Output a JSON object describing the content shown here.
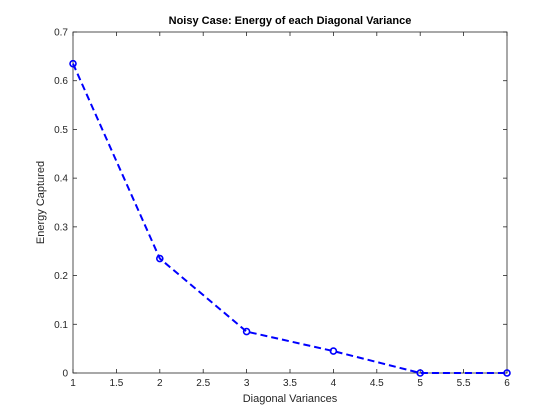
{
  "chart_data": {
    "type": "line",
    "title": "Noisy Case: Energy of each Diagonal Variance",
    "xlabel": "Diagonal Variances",
    "ylabel": "Energy Captured",
    "xlim": [
      1,
      6
    ],
    "ylim": [
      0,
      0.7
    ],
    "xticks": [
      "1",
      "1.5",
      "2",
      "2.5",
      "3",
      "3.5",
      "4",
      "4.5",
      "5",
      "5.5",
      "6"
    ],
    "yticks": [
      "0",
      "0.1",
      "0.2",
      "0.3",
      "0.4",
      "0.5",
      "0.6",
      "0.7"
    ],
    "grid": false,
    "series": [
      {
        "x": [
          1,
          2,
          3,
          4,
          5,
          6
        ],
        "values": [
          0.635,
          0.235,
          0.085,
          0.045,
          0.0,
          0.0
        ],
        "color": "#0000ff",
        "line_style": "dashed",
        "marker": "circle"
      }
    ]
  }
}
